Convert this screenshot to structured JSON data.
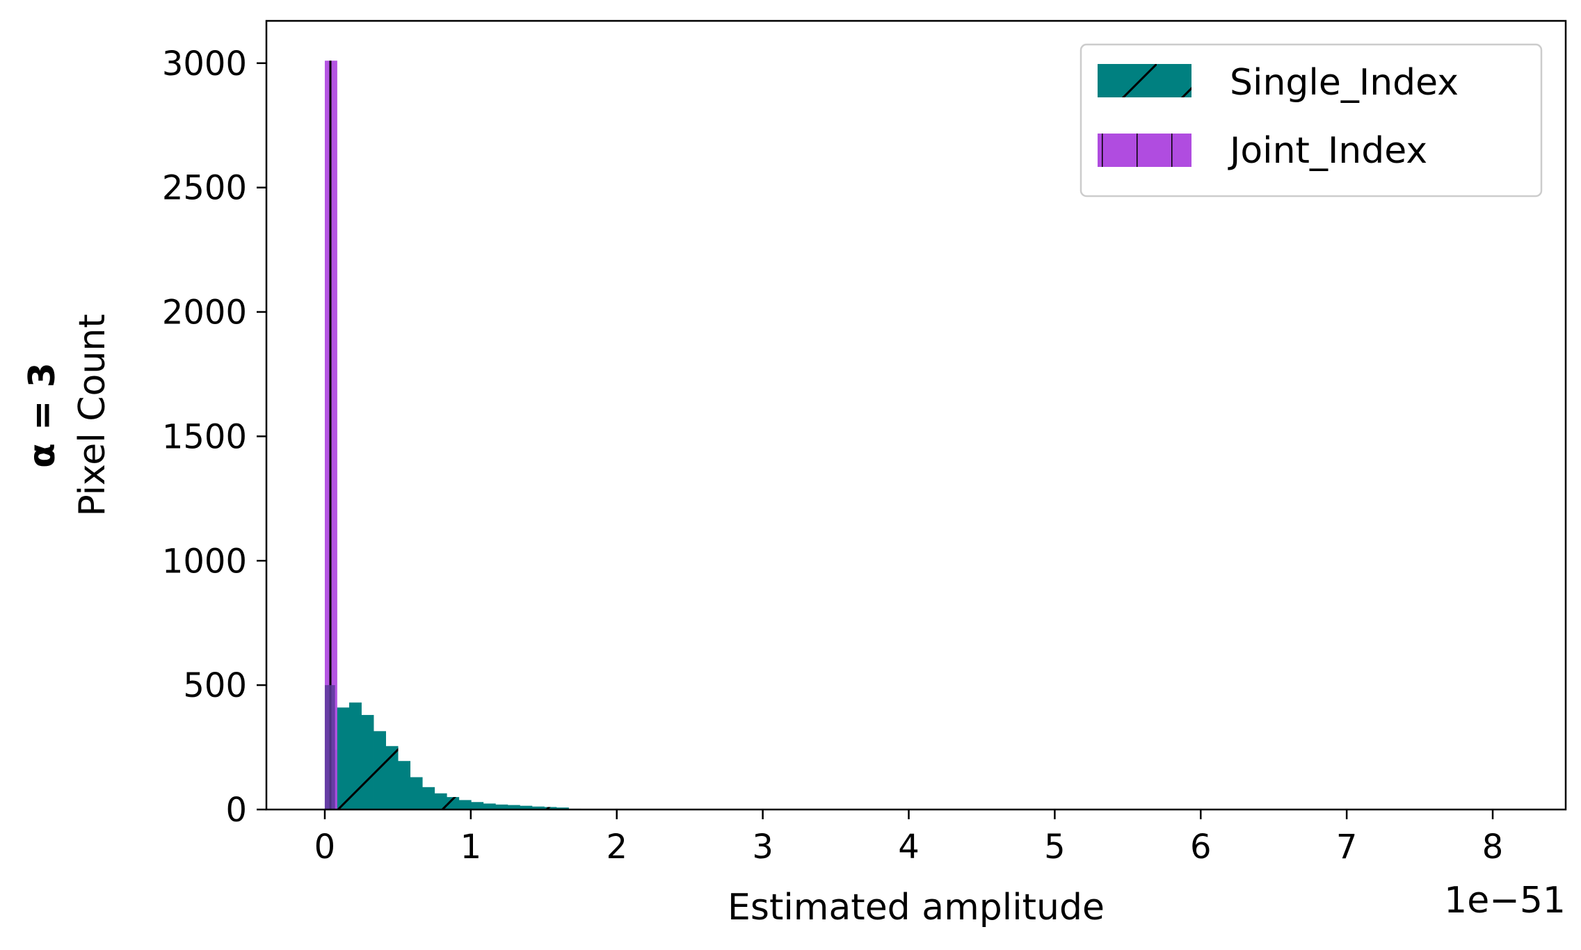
{
  "chart_data": {
    "type": "bar",
    "chart_kind": "histogram",
    "xlabel": "Estimated amplitude",
    "ylabel_bold": "α = 3",
    "ylabel": "Pixel Count",
    "x_offset_label": "1e−51",
    "xlim": [
      -0.4,
      8.5
    ],
    "ylim": [
      0,
      3170
    ],
    "xticks": [
      0,
      1,
      2,
      3,
      4,
      5,
      6,
      7,
      8
    ],
    "xtick_labels": [
      "0",
      "1",
      "2",
      "3",
      "4",
      "5",
      "6",
      "7",
      "8"
    ],
    "yticks": [
      0,
      500,
      1000,
      1500,
      2000,
      2500,
      3000
    ],
    "ytick_labels": [
      "0",
      "500",
      "1000",
      "1500",
      "2000",
      "2500",
      "3000"
    ],
    "grid": false,
    "legend_position": "top-right",
    "series": [
      {
        "name": "Single_Index",
        "color": "#008080",
        "hatch": "diagonal",
        "bin_width": 0.0835,
        "bin_starts": [
          0.0,
          0.0835,
          0.167,
          0.2505,
          0.334,
          0.4175,
          0.501,
          0.5845,
          0.668,
          0.7515,
          0.835,
          0.9185,
          1.002,
          1.0855,
          1.169,
          1.2525,
          1.336,
          1.4195,
          1.503,
          1.5865,
          1.67
        ],
        "values": [
          240,
          410,
          430,
          380,
          315,
          255,
          195,
          130,
          90,
          65,
          50,
          38,
          30,
          24,
          20,
          18,
          15,
          12,
          10,
          8,
          3
        ]
      },
      {
        "name": "Joint_Index",
        "color": "#b04ce0",
        "hatch": "vertical",
        "bin_width": 0.0835,
        "bin_starts": [
          0.0
        ],
        "values": [
          3010
        ]
      }
    ],
    "overlap_bins": [
      {
        "start": 0.0,
        "width": 0.07,
        "value": 500
      }
    ]
  }
}
